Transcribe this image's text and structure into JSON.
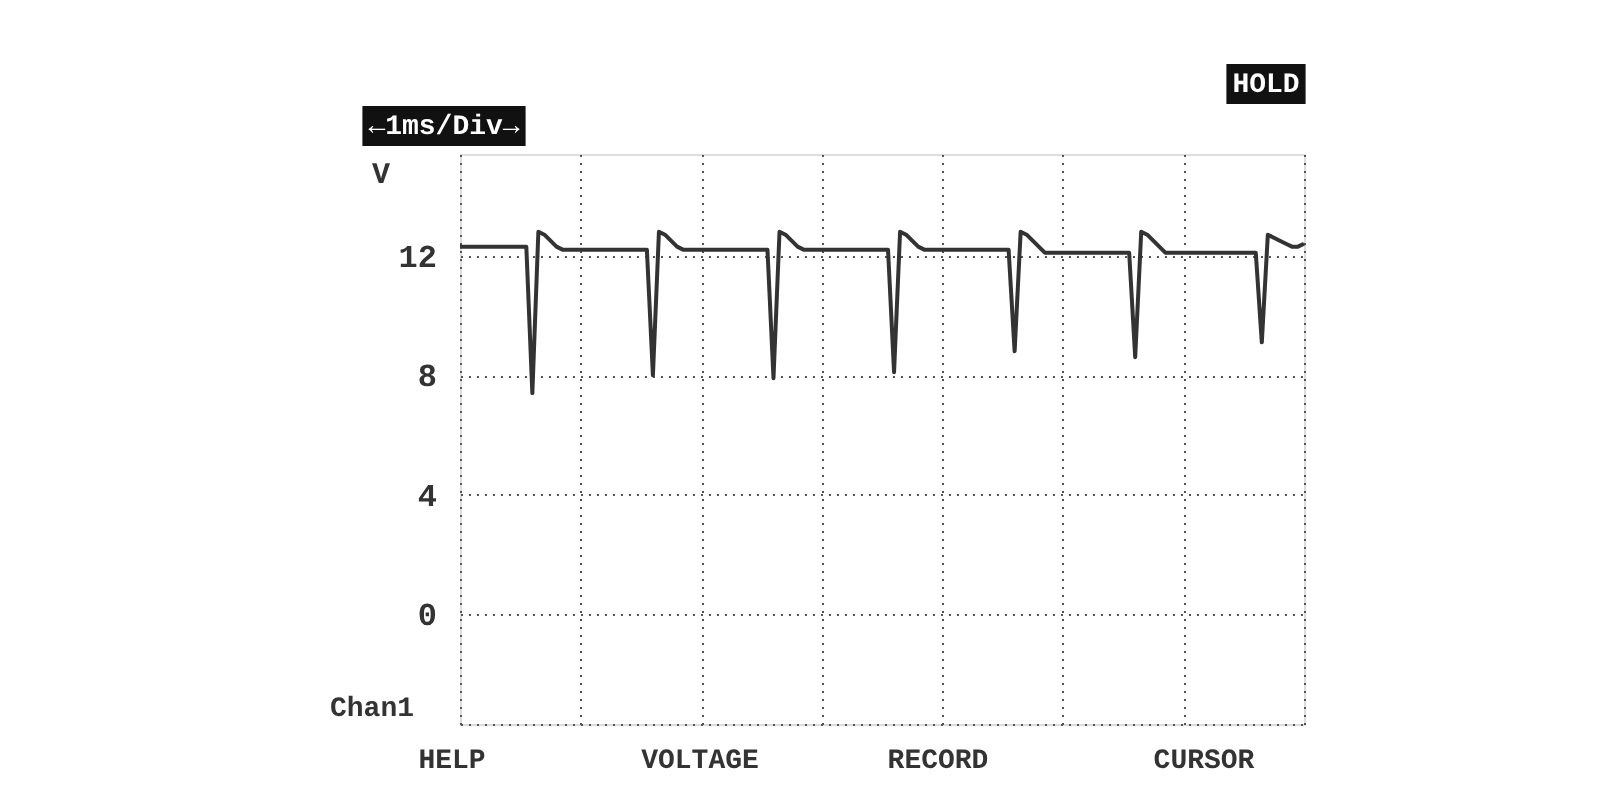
{
  "chart_data": {
    "type": "line",
    "ylabel": "V",
    "annotations": [
      "←1ms/Div→",
      "HOLD",
      "Chan1",
      "HELP",
      "VOLTAGE",
      "RECORD",
      "CURSOR"
    ],
    "categories": [
      null,
      null,
      null,
      null,
      null,
      null,
      null,
      null,
      null,
      null,
      null,
      null,
      null,
      null,
      null,
      null,
      null,
      null,
      null,
      null,
      null,
      null,
      null,
      null,
      null,
      null,
      null,
      null,
      null,
      null,
      null,
      null,
      null,
      null,
      null,
      null,
      null,
      null,
      null,
      null,
      null,
      null,
      null,
      null,
      null,
      null,
      null,
      null,
      null,
      null,
      null,
      null,
      null,
      null,
      null,
      null,
      null,
      null,
      null,
      null,
      null,
      null,
      null,
      null,
      null,
      null,
      null,
      null,
      null,
      null,
      null,
      null,
      null,
      null,
      null,
      null,
      null,
      null,
      null,
      null,
      null,
      null,
      null,
      null,
      null,
      null,
      null,
      null,
      null,
      null,
      null,
      null,
      null,
      null,
      null,
      null,
      null,
      null,
      null,
      null,
      null,
      null,
      null,
      null,
      null,
      null,
      null,
      null,
      null,
      null,
      null,
      null,
      null,
      null,
      null,
      null,
      null,
      null,
      null,
      null,
      null,
      null,
      null,
      null,
      null,
      null,
      null,
      null,
      null,
      null,
      null,
      null,
      null,
      null,
      null,
      null,
      null,
      null,
      null,
      null,
      null
    ],
    "series": [
      {
        "color": "#333333",
        "values": [
          12.3,
          12.3,
          12.3,
          12.3,
          12.3,
          12.3,
          12.3,
          12.3,
          12.3,
          12.3,
          12.3,
          12.3,
          7.4,
          12.8,
          12.7,
          12.5,
          12.3,
          12.2,
          12.2,
          12.2,
          12.2,
          12.2,
          12.2,
          12.2,
          12.2,
          12.2,
          12.2,
          12.2,
          12.2,
          12.2,
          12.2,
          12.2,
          8.0,
          12.8,
          12.7,
          12.5,
          12.3,
          12.2,
          12.2,
          12.2,
          12.2,
          12.2,
          12.2,
          12.2,
          12.2,
          12.2,
          12.2,
          12.2,
          12.2,
          12.2,
          12.2,
          12.2,
          7.9,
          12.8,
          12.7,
          12.5,
          12.3,
          12.2,
          12.2,
          12.2,
          12.2,
          12.2,
          12.2,
          12.2,
          12.2,
          12.2,
          12.2,
          12.2,
          12.2,
          12.2,
          12.2,
          12.2,
          8.1,
          12.8,
          12.7,
          12.5,
          12.3,
          12.2,
          12.2,
          12.2,
          12.2,
          12.2,
          12.2,
          12.2,
          12.2,
          12.2,
          12.2,
          12.2,
          12.2,
          12.2,
          12.2,
          12.2,
          8.8,
          12.8,
          12.7,
          12.5,
          12.3,
          12.1,
          12.1,
          12.1,
          12.1,
          12.1,
          12.1,
          12.1,
          12.1,
          12.1,
          12.1,
          12.1,
          12.1,
          12.1,
          12.1,
          12.1,
          8.6,
          12.8,
          12.7,
          12.5,
          12.3,
          12.1,
          12.1,
          12.1,
          12.1,
          12.1,
          12.1,
          12.1,
          12.1,
          12.1,
          12.1,
          12.1,
          12.1,
          12.1,
          12.1,
          12.1,
          12.1,
          9.1,
          12.7,
          12.6,
          12.5,
          12.4,
          12.3,
          12.3,
          12.4
        ]
      }
    ],
    "ylim": [
      -3.67,
      15.4
    ],
    "yticks": [
      0,
      4,
      8,
      12
    ],
    "grid": true
  }
}
